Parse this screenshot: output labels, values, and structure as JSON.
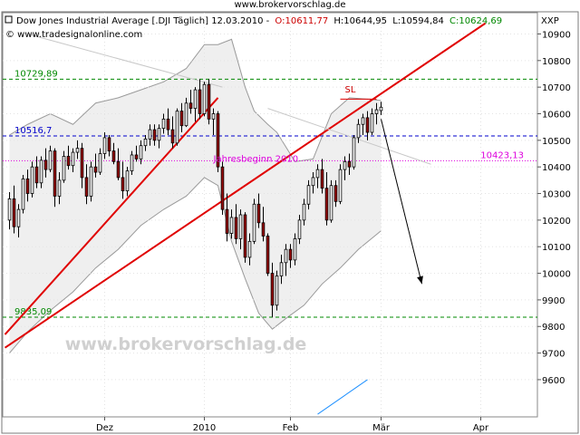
{
  "site_caption": "www.brokervorschlag.de",
  "watermark": "www.brokervorschlag.de",
  "header": {
    "title": "Dow Jones Industrial Average [.DJI  Täglich] 12.03.2010 -",
    "ohlc": [
      {
        "label": "O:10611,77",
        "color": "#cc0000"
      },
      {
        "label": "H:10644,95",
        "color": "#000000"
      },
      {
        "label": "L:10594,84",
        "color": "#000000"
      },
      {
        "label": "C:10624,69",
        "color": "#008800"
      }
    ],
    "copyright": "© www.tradesignalonline.com",
    "instrument_code": "XXP"
  },
  "chart_data": {
    "type": "candlestick",
    "title": "Dow Jones Industrial Average [.DJI  Täglich] 12.03.2010",
    "ylim": [
      9460,
      10980
    ],
    "y_ticks": [
      9600,
      9700,
      9800,
      9900,
      10000,
      10100,
      10200,
      10300,
      10400,
      10500,
      10600,
      10700,
      10800,
      10900
    ],
    "y_tick_labels": [
      "9600",
      "9700",
      "9800",
      "9900",
      "10000",
      "10100",
      "10200",
      "10300",
      "10400",
      "10500",
      "10600",
      "10700",
      "10800",
      "10900"
    ],
    "x_labels": [
      {
        "label": "Dez",
        "index": 22
      },
      {
        "label": "2010",
        "index": 44
      },
      {
        "label": "Feb",
        "index": 63
      },
      {
        "label": "Mär",
        "index": 83
      },
      {
        "label": "Apr",
        "index": 105
      }
    ],
    "x_count": 118,
    "candles": [
      {
        "i": 1,
        "o": 10200,
        "h": 10305,
        "l": 10165,
        "c": 10280
      },
      {
        "i": 2,
        "o": 10280,
        "h": 10330,
        "l": 10150,
        "c": 10175
      },
      {
        "i": 3,
        "o": 10175,
        "h": 10260,
        "l": 10135,
        "c": 10240
      },
      {
        "i": 4,
        "o": 10240,
        "h": 10370,
        "l": 10225,
        "c": 10355
      },
      {
        "i": 5,
        "o": 10355,
        "h": 10390,
        "l": 10270,
        "c": 10300
      },
      {
        "i": 6,
        "o": 10300,
        "h": 10420,
        "l": 10285,
        "c": 10400
      },
      {
        "i": 7,
        "o": 10400,
        "h": 10440,
        "l": 10320,
        "c": 10340
      },
      {
        "i": 8,
        "o": 10340,
        "h": 10440,
        "l": 10320,
        "c": 10425
      },
      {
        "i": 9,
        "o": 10425,
        "h": 10470,
        "l": 10360,
        "c": 10390
      },
      {
        "i": 10,
        "o": 10390,
        "h": 10480,
        "l": 10380,
        "c": 10460
      },
      {
        "i": 11,
        "o": 10460,
        "h": 10470,
        "l": 10250,
        "c": 10290
      },
      {
        "i": 12,
        "o": 10290,
        "h": 10380,
        "l": 10260,
        "c": 10350
      },
      {
        "i": 13,
        "o": 10350,
        "h": 10460,
        "l": 10340,
        "c": 10440
      },
      {
        "i": 14,
        "o": 10440,
        "h": 10480,
        "l": 10390,
        "c": 10405
      },
      {
        "i": 15,
        "o": 10405,
        "h": 10470,
        "l": 10380,
        "c": 10455
      },
      {
        "i": 16,
        "o": 10455,
        "h": 10500,
        "l": 10430,
        "c": 10470
      },
      {
        "i": 17,
        "o": 10470,
        "h": 10490,
        "l": 10320,
        "c": 10360
      },
      {
        "i": 18,
        "o": 10360,
        "h": 10410,
        "l": 10260,
        "c": 10290
      },
      {
        "i": 19,
        "o": 10290,
        "h": 10420,
        "l": 10270,
        "c": 10400
      },
      {
        "i": 20,
        "o": 10400,
        "h": 10450,
        "l": 10360,
        "c": 10380
      },
      {
        "i": 21,
        "o": 10380,
        "h": 10470,
        "l": 10370,
        "c": 10450
      },
      {
        "i": 22,
        "o": 10450,
        "h": 10530,
        "l": 10430,
        "c": 10510
      },
      {
        "i": 23,
        "o": 10510,
        "h": 10520,
        "l": 10440,
        "c": 10460
      },
      {
        "i": 24,
        "o": 10460,
        "h": 10490,
        "l": 10410,
        "c": 10420
      },
      {
        "i": 25,
        "o": 10420,
        "h": 10470,
        "l": 10350,
        "c": 10360
      },
      {
        "i": 26,
        "o": 10360,
        "h": 10420,
        "l": 10280,
        "c": 10310
      },
      {
        "i": 27,
        "o": 10310,
        "h": 10400,
        "l": 10290,
        "c": 10385
      },
      {
        "i": 28,
        "o": 10385,
        "h": 10460,
        "l": 10370,
        "c": 10445
      },
      {
        "i": 29,
        "o": 10445,
        "h": 10480,
        "l": 10420,
        "c": 10430
      },
      {
        "i": 30,
        "o": 10430,
        "h": 10500,
        "l": 10410,
        "c": 10480
      },
      {
        "i": 31,
        "o": 10480,
        "h": 10520,
        "l": 10460,
        "c": 10505
      },
      {
        "i": 32,
        "o": 10505,
        "h": 10560,
        "l": 10480,
        "c": 10540
      },
      {
        "i": 33,
        "o": 10540,
        "h": 10560,
        "l": 10480,
        "c": 10500
      },
      {
        "i": 34,
        "o": 10500,
        "h": 10560,
        "l": 10470,
        "c": 10545
      },
      {
        "i": 35,
        "o": 10545,
        "h": 10600,
        "l": 10525,
        "c": 10580
      },
      {
        "i": 36,
        "o": 10580,
        "h": 10620,
        "l": 10520,
        "c": 10540
      },
      {
        "i": 37,
        "o": 10540,
        "h": 10590,
        "l": 10470,
        "c": 10490
      },
      {
        "i": 38,
        "o": 10490,
        "h": 10620,
        "l": 10480,
        "c": 10610
      },
      {
        "i": 39,
        "o": 10610,
        "h": 10640,
        "l": 10530,
        "c": 10555
      },
      {
        "i": 40,
        "o": 10555,
        "h": 10660,
        "l": 10550,
        "c": 10640
      },
      {
        "i": 41,
        "o": 10640,
        "h": 10690,
        "l": 10600,
        "c": 10620
      },
      {
        "i": 42,
        "o": 10620,
        "h": 10700,
        "l": 10570,
        "c": 10690
      },
      {
        "i": 43,
        "o": 10690,
        "h": 10730,
        "l": 10580,
        "c": 10600
      },
      {
        "i": 44,
        "o": 10600,
        "h": 10720,
        "l": 10590,
        "c": 10710
      },
      {
        "i": 45,
        "o": 10710,
        "h": 10730,
        "l": 10560,
        "c": 10580
      },
      {
        "i": 46,
        "o": 10580,
        "h": 10620,
        "l": 10520,
        "c": 10600
      },
      {
        "i": 47,
        "o": 10600,
        "h": 10610,
        "l": 10380,
        "c": 10400
      },
      {
        "i": 48,
        "o": 10400,
        "h": 10420,
        "l": 10220,
        "c": 10240
      },
      {
        "i": 49,
        "o": 10240,
        "h": 10300,
        "l": 10120,
        "c": 10150
      },
      {
        "i": 50,
        "o": 10150,
        "h": 10240,
        "l": 10130,
        "c": 10210
      },
      {
        "i": 51,
        "o": 10210,
        "h": 10260,
        "l": 10110,
        "c": 10130
      },
      {
        "i": 52,
        "o": 10130,
        "h": 10240,
        "l": 10090,
        "c": 10220
      },
      {
        "i": 53,
        "o": 10220,
        "h": 10230,
        "l": 10040,
        "c": 10060
      },
      {
        "i": 54,
        "o": 10060,
        "h": 10150,
        "l": 10030,
        "c": 10120
      },
      {
        "i": 55,
        "o": 10120,
        "h": 10280,
        "l": 10110,
        "c": 10260
      },
      {
        "i": 56,
        "o": 10260,
        "h": 10300,
        "l": 10170,
        "c": 10190
      },
      {
        "i": 57,
        "o": 10190,
        "h": 10250,
        "l": 10120,
        "c": 10140
      },
      {
        "i": 58,
        "o": 10140,
        "h": 10150,
        "l": 9990,
        "c": 10000
      },
      {
        "i": 59,
        "o": 10000,
        "h": 10040,
        "l": 9835,
        "c": 9880
      },
      {
        "i": 60,
        "o": 9880,
        "h": 10010,
        "l": 9860,
        "c": 9990
      },
      {
        "i": 61,
        "o": 9990,
        "h": 10070,
        "l": 9960,
        "c": 10040
      },
      {
        "i": 62,
        "o": 10040,
        "h": 10110,
        "l": 9990,
        "c": 10090
      },
      {
        "i": 63,
        "o": 10090,
        "h": 10110,
        "l": 10020,
        "c": 10050
      },
      {
        "i": 64,
        "o": 10050,
        "h": 10150,
        "l": 10030,
        "c": 10130
      },
      {
        "i": 65,
        "o": 10130,
        "h": 10220,
        "l": 10110,
        "c": 10200
      },
      {
        "i": 66,
        "o": 10200,
        "h": 10280,
        "l": 10180,
        "c": 10260
      },
      {
        "i": 67,
        "o": 10260,
        "h": 10350,
        "l": 10240,
        "c": 10330
      },
      {
        "i": 68,
        "o": 10330,
        "h": 10380,
        "l": 10300,
        "c": 10360
      },
      {
        "i": 69,
        "o": 10360,
        "h": 10410,
        "l": 10320,
        "c": 10390
      },
      {
        "i": 70,
        "o": 10390,
        "h": 10430,
        "l": 10300,
        "c": 10320
      },
      {
        "i": 71,
        "o": 10320,
        "h": 10380,
        "l": 10180,
        "c": 10200
      },
      {
        "i": 72,
        "o": 10200,
        "h": 10350,
        "l": 10190,
        "c": 10330
      },
      {
        "i": 73,
        "o": 10330,
        "h": 10350,
        "l": 10250,
        "c": 10270
      },
      {
        "i": 74,
        "o": 10270,
        "h": 10410,
        "l": 10260,
        "c": 10390
      },
      {
        "i": 75,
        "o": 10390,
        "h": 10440,
        "l": 10350,
        "c": 10420
      },
      {
        "i": 76,
        "o": 10420,
        "h": 10450,
        "l": 10370,
        "c": 10400
      },
      {
        "i": 77,
        "o": 10400,
        "h": 10520,
        "l": 10390,
        "c": 10510
      },
      {
        "i": 78,
        "o": 10510,
        "h": 10580,
        "l": 10490,
        "c": 10560
      },
      {
        "i": 79,
        "o": 10560,
        "h": 10600,
        "l": 10520,
        "c": 10585
      },
      {
        "i": 80,
        "o": 10585,
        "h": 10610,
        "l": 10500,
        "c": 10530
      },
      {
        "i": 81,
        "o": 10530,
        "h": 10620,
        "l": 10520,
        "c": 10600
      },
      {
        "i": 82,
        "o": 10600,
        "h": 10640,
        "l": 10560,
        "c": 10615
      },
      {
        "i": 83,
        "o": 10611.77,
        "h": 10644.95,
        "l": 10594.84,
        "c": 10624.69
      }
    ],
    "bands": {
      "upper": [
        [
          1,
          10520
        ],
        [
          5,
          10560
        ],
        [
          10,
          10600
        ],
        [
          15,
          10560
        ],
        [
          20,
          10640
        ],
        [
          25,
          10660
        ],
        [
          30,
          10690
        ],
        [
          35,
          10720
        ],
        [
          40,
          10770
        ],
        [
          44,
          10860
        ],
        [
          47,
          10860
        ],
        [
          50,
          10880
        ],
        [
          53,
          10700
        ],
        [
          55,
          10610
        ],
        [
          58,
          10560
        ],
        [
          60,
          10530
        ],
        [
          64,
          10420
        ],
        [
          68,
          10430
        ],
        [
          72,
          10600
        ],
        [
          76,
          10660
        ],
        [
          80,
          10655
        ],
        [
          83,
          10650
        ]
      ],
      "lower": [
        [
          1,
          9700
        ],
        [
          5,
          9780
        ],
        [
          10,
          9860
        ],
        [
          15,
          9930
        ],
        [
          20,
          10020
        ],
        [
          25,
          10090
        ],
        [
          30,
          10180
        ],
        [
          35,
          10240
        ],
        [
          40,
          10290
        ],
        [
          44,
          10360
        ],
        [
          47,
          10330
        ],
        [
          50,
          10120
        ],
        [
          53,
          9980
        ],
        [
          56,
          9850
        ],
        [
          59,
          9790
        ],
        [
          62,
          9830
        ],
        [
          66,
          9880
        ],
        [
          70,
          9960
        ],
        [
          74,
          10020
        ],
        [
          78,
          10090
        ],
        [
          83,
          10160
        ]
      ]
    },
    "horizontal_lines": [
      {
        "value": 10729.89,
        "label": "10729,89",
        "color": "#008800",
        "label_side": "left"
      },
      {
        "value": 10516.7,
        "label": "10516,7",
        "color": "#0000cc",
        "label_side": "left"
      },
      {
        "value": 10423.13,
        "label": "10423,13",
        "color": "#dd00dd",
        "label_side": "right"
      },
      {
        "value": 9835.09,
        "label": "9835,09",
        "color": "#008800",
        "label_side": "left"
      }
    ],
    "annotations": [
      {
        "text": "Jahresbeginn 2010",
        "x_index": 46,
        "y": 10420,
        "color": "#dd00dd"
      },
      {
        "text": "SL",
        "x_index": 75,
        "y": 10680,
        "color": "#cc0000"
      }
    ],
    "trendlines": [
      {
        "from": [
          0,
          9770
        ],
        "to": [
          47,
          10660
        ],
        "color": "#e00000",
        "width": 2
      },
      {
        "from": [
          0,
          9720
        ],
        "to": [
          106,
          10940
        ],
        "color": "#e00000",
        "width": 2
      },
      {
        "from": [
          74,
          10655
        ],
        "to": [
          82,
          10655
        ],
        "color": "#e00000",
        "width": 1
      },
      {
        "from": [
          69,
          9470
        ],
        "to": [
          80,
          9600
        ],
        "color": "#1e90ff",
        "width": 1
      },
      {
        "from": [
          5,
          10900
        ],
        "to": [
          48,
          10700
        ],
        "color": "#c8c8c8",
        "width": 1
      },
      {
        "from": [
          58,
          10620
        ],
        "to": [
          94,
          10410
        ],
        "color": "#c8c8c8",
        "width": 1
      }
    ],
    "forecast_arrow": {
      "from": [
        83,
        10580
      ],
      "to": [
        92,
        9960
      ],
      "color": "#000000"
    }
  }
}
